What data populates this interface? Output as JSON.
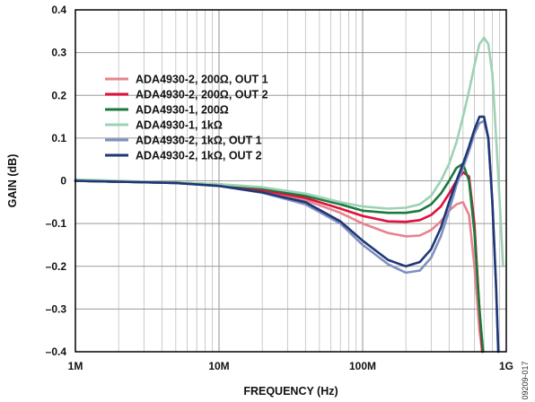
{
  "chart_data": {
    "type": "line",
    "xlabel": "FREQUENCY (Hz)",
    "ylabel": "GAIN (dB)",
    "x_scale": "log",
    "xlim": [
      1000000,
      1000000000
    ],
    "ylim": [
      -0.4,
      0.4
    ],
    "x_ticks": [
      {
        "value": 1000000,
        "label": "1M"
      },
      {
        "value": 10000000,
        "label": "10M"
      },
      {
        "value": 100000000,
        "label": "100M"
      },
      {
        "value": 1000000000,
        "label": "1G"
      }
    ],
    "y_ticks": [
      {
        "value": 0.4,
        "label": "0.4"
      },
      {
        "value": 0.3,
        "label": "0.3"
      },
      {
        "value": 0.2,
        "label": "0.2"
      },
      {
        "value": 0.1,
        "label": "0.1"
      },
      {
        "value": 0,
        "label": "0"
      },
      {
        "value": -0.1,
        "label": "–0.1"
      },
      {
        "value": -0.2,
        "label": "–0.2"
      },
      {
        "value": -0.3,
        "label": "–0.3"
      },
      {
        "value": -0.4,
        "label": "–0.4"
      }
    ],
    "grid": true,
    "legend_position": "top-left",
    "figure_id": "09209-017",
    "series": [
      {
        "name": "ADA4930-2, 200Ω, OUT 1",
        "color": "#e8838e",
        "points": [
          [
            1000000,
            0
          ],
          [
            2000000,
            -0.002
          ],
          [
            5000000,
            -0.005
          ],
          [
            10000000,
            -0.012
          ],
          [
            20000000,
            -0.025
          ],
          [
            40000000,
            -0.045
          ],
          [
            70000000,
            -0.075
          ],
          [
            100000000,
            -0.1
          ],
          [
            150000000,
            -0.122
          ],
          [
            200000000,
            -0.13
          ],
          [
            250000000,
            -0.128
          ],
          [
            300000000,
            -0.115
          ],
          [
            350000000,
            -0.095
          ],
          [
            400000000,
            -0.07
          ],
          [
            450000000,
            -0.055
          ],
          [
            500000000,
            -0.05
          ],
          [
            550000000,
            -0.08
          ],
          [
            600000000,
            -0.2
          ],
          [
            650000000,
            -0.35
          ],
          [
            680000000,
            -0.4
          ]
        ]
      },
      {
        "name": "ADA4930-2, 200Ω, OUT 2",
        "color": "#e0103c",
        "points": [
          [
            1000000,
            0
          ],
          [
            2000000,
            -0.002
          ],
          [
            5000000,
            -0.005
          ],
          [
            10000000,
            -0.01
          ],
          [
            20000000,
            -0.022
          ],
          [
            40000000,
            -0.04
          ],
          [
            70000000,
            -0.065
          ],
          [
            100000000,
            -0.082
          ],
          [
            150000000,
            -0.095
          ],
          [
            200000000,
            -0.096
          ],
          [
            250000000,
            -0.092
          ],
          [
            300000000,
            -0.08
          ],
          [
            350000000,
            -0.06
          ],
          [
            400000000,
            -0.03
          ],
          [
            450000000,
            0
          ],
          [
            500000000,
            0.02
          ],
          [
            550000000,
            0.01
          ],
          [
            600000000,
            -0.1
          ],
          [
            650000000,
            -0.3
          ],
          [
            680000000,
            -0.4
          ]
        ]
      },
      {
        "name": "ADA4930-1, 200Ω",
        "color": "#1a7a3c",
        "points": [
          [
            1000000,
            0
          ],
          [
            2000000,
            -0.002
          ],
          [
            5000000,
            -0.004
          ],
          [
            10000000,
            -0.008
          ],
          [
            20000000,
            -0.018
          ],
          [
            40000000,
            -0.035
          ],
          [
            70000000,
            -0.055
          ],
          [
            100000000,
            -0.07
          ],
          [
            150000000,
            -0.075
          ],
          [
            200000000,
            -0.075
          ],
          [
            250000000,
            -0.07
          ],
          [
            300000000,
            -0.055
          ],
          [
            350000000,
            -0.03
          ],
          [
            400000000,
            0
          ],
          [
            450000000,
            0.03
          ],
          [
            500000000,
            0.04
          ],
          [
            550000000,
            0
          ],
          [
            600000000,
            -0.12
          ],
          [
            650000000,
            -0.3
          ],
          [
            690000000,
            -0.4
          ]
        ]
      },
      {
        "name": "ADA4930-1, 1kΩ",
        "color": "#9ed1b4",
        "points": [
          [
            1000000,
            0.003
          ],
          [
            2000000,
            0
          ],
          [
            5000000,
            -0.004
          ],
          [
            10000000,
            -0.008
          ],
          [
            20000000,
            -0.015
          ],
          [
            40000000,
            -0.03
          ],
          [
            70000000,
            -0.05
          ],
          [
            100000000,
            -0.06
          ],
          [
            150000000,
            -0.065
          ],
          [
            200000000,
            -0.063
          ],
          [
            250000000,
            -0.055
          ],
          [
            300000000,
            -0.035
          ],
          [
            350000000,
            0
          ],
          [
            400000000,
            0.04
          ],
          [
            450000000,
            0.09
          ],
          [
            500000000,
            0.15
          ],
          [
            550000000,
            0.21
          ],
          [
            600000000,
            0.27
          ],
          [
            650000000,
            0.32
          ],
          [
            700000000,
            0.335
          ],
          [
            750000000,
            0.32
          ],
          [
            800000000,
            0.25
          ],
          [
            850000000,
            0.1
          ],
          [
            900000000,
            -0.05
          ],
          [
            950000000,
            -0.2
          ]
        ]
      },
      {
        "name": "ADA4930-2, 1kΩ, OUT 1",
        "color": "#7f8fbf",
        "points": [
          [
            1000000,
            0
          ],
          [
            2000000,
            -0.002
          ],
          [
            5000000,
            -0.005
          ],
          [
            10000000,
            -0.012
          ],
          [
            20000000,
            -0.028
          ],
          [
            40000000,
            -0.055
          ],
          [
            70000000,
            -0.1
          ],
          [
            100000000,
            -0.15
          ],
          [
            150000000,
            -0.195
          ],
          [
            200000000,
            -0.215
          ],
          [
            250000000,
            -0.21
          ],
          [
            300000000,
            -0.18
          ],
          [
            350000000,
            -0.13
          ],
          [
            400000000,
            -0.07
          ],
          [
            450000000,
            -0.01
          ],
          [
            500000000,
            0.03
          ],
          [
            550000000,
            0.07
          ],
          [
            600000000,
            0.11
          ],
          [
            650000000,
            0.135
          ],
          [
            700000000,
            0.14
          ],
          [
            750000000,
            0.1
          ],
          [
            800000000,
            -0.05
          ],
          [
            850000000,
            -0.25
          ],
          [
            880000000,
            -0.4
          ]
        ]
      },
      {
        "name": "ADA4930-2, 1kΩ, OUT 2",
        "color": "#1f3775",
        "points": [
          [
            1000000,
            0
          ],
          [
            2000000,
            -0.002
          ],
          [
            5000000,
            -0.005
          ],
          [
            10000000,
            -0.012
          ],
          [
            20000000,
            -0.027
          ],
          [
            40000000,
            -0.05
          ],
          [
            70000000,
            -0.095
          ],
          [
            100000000,
            -0.14
          ],
          [
            150000000,
            -0.185
          ],
          [
            200000000,
            -0.2
          ],
          [
            250000000,
            -0.19
          ],
          [
            300000000,
            -0.16
          ],
          [
            350000000,
            -0.11
          ],
          [
            400000000,
            -0.05
          ],
          [
            450000000,
            0
          ],
          [
            500000000,
            0.04
          ],
          [
            550000000,
            0.08
          ],
          [
            600000000,
            0.12
          ],
          [
            650000000,
            0.15
          ],
          [
            700000000,
            0.15
          ],
          [
            750000000,
            0.1
          ],
          [
            800000000,
            -0.05
          ],
          [
            850000000,
            -0.25
          ],
          [
            880000000,
            -0.4
          ]
        ]
      }
    ]
  }
}
